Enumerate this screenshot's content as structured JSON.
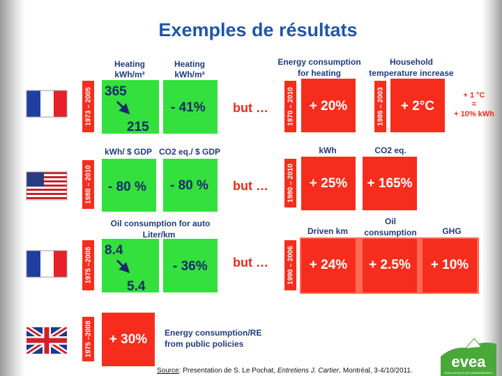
{
  "title": "Exemples de résultats",
  "rows": [
    {
      "period": "1973 – 2005",
      "headers": [
        [
          "Heating",
          "kWh/m²"
        ],
        [
          "Heating",
          "kWh/m²"
        ],
        [
          "Energy consumption",
          "for heating"
        ],
        [
          "Household",
          "temperature increase"
        ]
      ],
      "from": "365",
      "to": "215",
      "change": "- 41%",
      "but": "but …",
      "period2": "1970 – 2010",
      "results": [
        "+ 20%",
        "+ 2°C"
      ],
      "period3": "1986 – 2003",
      "note": [
        "+ 1 °C",
        "=",
        "+ 10% kWh"
      ]
    },
    {
      "period": "1980 – 2010",
      "headers": [
        [
          "kWh/ $ GDP"
        ],
        [
          "CO2 eq./ $ GDP"
        ],
        [
          "kWh"
        ],
        [
          "CO2 eq."
        ]
      ],
      "changes": [
        "- 80 %",
        "- 80 %"
      ],
      "but": "but …",
      "period2": "1980 – 2010",
      "results": [
        "+ 25%",
        "+ 165%"
      ]
    },
    {
      "period": "1975 –2008",
      "headers": [
        [
          "Oil consumption  for auto",
          "Liter/km"
        ],
        [
          "Driven km"
        ],
        [
          "Oil",
          "consumption"
        ],
        [
          "GHG"
        ]
      ],
      "from": "8.4",
      "to": "5.4",
      "change": "- 36%",
      "but": "but …",
      "period2": "1990 – 2006",
      "results": [
        "+ 24%",
        "+ 2.5%",
        "+ 10%"
      ]
    },
    {
      "period": "1975 –2008",
      "change": "+ 30%",
      "caption": [
        "Energy consumption/RE",
        "from public policies"
      ]
    }
  ],
  "footer": {
    "source_label": "Source",
    "text": ": Presentation de S. Le Pochat, ",
    "event": "Entretiens J. Cartier",
    "place": ", Montréal, 3-4/10/2011."
  },
  "logo": {
    "name": "evea",
    "tagline": "ÉVALUATION & ACCOMPAGNEMENT"
  }
}
